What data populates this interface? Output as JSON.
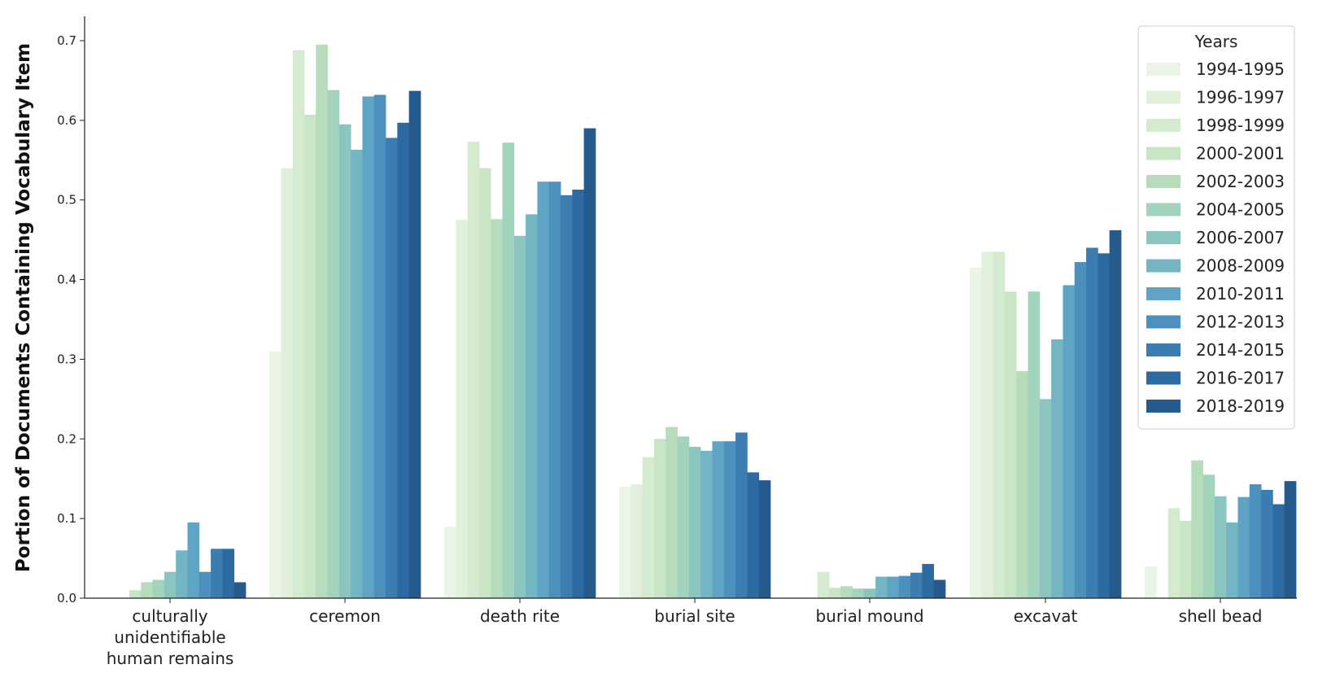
{
  "chart_data": {
    "type": "bar",
    "ylabel": "Portion of Documents Containing Vocabulary Item",
    "xlabel": "",
    "ylim": [
      0,
      0.72
    ],
    "yticks": [
      "0.0",
      "0.1",
      "0.2",
      "0.3",
      "0.4",
      "0.5",
      "0.6",
      "0.7"
    ],
    "grid": false,
    "legend_title": "Years",
    "legend_position": "top-right",
    "categories": [
      [
        "culturally",
        "unidentifiable",
        "human remains"
      ],
      [
        "ceremon"
      ],
      [
        "death rite"
      ],
      [
        "burial site"
      ],
      [
        "burial mound"
      ],
      [
        "excavat"
      ],
      [
        "shell bead"
      ]
    ],
    "series": [
      {
        "name": "1994-1995",
        "color": "#eaf5e6",
        "values": [
          0.0,
          0.31,
          0.09,
          0.14,
          0.0,
          0.415,
          0.04
        ]
      },
      {
        "name": "1996-1997",
        "color": "#e0f0da",
        "values": [
          0.0,
          0.54,
          0.475,
          0.143,
          0.0,
          0.435,
          0.0
        ]
      },
      {
        "name": "1998-1999",
        "color": "#d5ebcf",
        "values": [
          0.0,
          0.688,
          0.573,
          0.177,
          0.033,
          0.435,
          0.113
        ]
      },
      {
        "name": "2000-2001",
        "color": "#c8e5c5",
        "values": [
          0.01,
          0.607,
          0.54,
          0.2,
          0.013,
          0.385,
          0.097
        ]
      },
      {
        "name": "2002-2003",
        "color": "#b7dcbb",
        "values": [
          0.02,
          0.695,
          0.476,
          0.215,
          0.015,
          0.285,
          0.173
        ]
      },
      {
        "name": "2004-2005",
        "color": "#a2d3bc",
        "values": [
          0.023,
          0.638,
          0.572,
          0.203,
          0.012,
          0.385,
          0.155
        ]
      },
      {
        "name": "2006-2007",
        "color": "#8ac6bf",
        "values": [
          0.033,
          0.595,
          0.455,
          0.19,
          0.012,
          0.25,
          0.128
        ]
      },
      {
        "name": "2008-2009",
        "color": "#73b5c2",
        "values": [
          0.06,
          0.563,
          0.482,
          0.185,
          0.027,
          0.325,
          0.095
        ]
      },
      {
        "name": "2010-2011",
        "color": "#5fa4c4",
        "values": [
          0.095,
          0.63,
          0.523,
          0.197,
          0.027,
          0.393,
          0.127
        ]
      },
      {
        "name": "2012-2013",
        "color": "#4c91bd",
        "values": [
          0.033,
          0.632,
          0.523,
          0.197,
          0.028,
          0.422,
          0.143
        ]
      },
      {
        "name": "2014-2015",
        "color": "#3b7db1",
        "values": [
          0.062,
          0.578,
          0.506,
          0.208,
          0.032,
          0.44,
          0.136
        ]
      },
      {
        "name": "2016-2017",
        "color": "#2e6aa2",
        "values": [
          0.062,
          0.597,
          0.513,
          0.158,
          0.043,
          0.433,
          0.118
        ]
      },
      {
        "name": "2018-2019",
        "color": "#245a8c",
        "values": [
          0.02,
          0.637,
          0.59,
          0.148,
          0.023,
          0.462,
          0.147
        ]
      }
    ]
  }
}
